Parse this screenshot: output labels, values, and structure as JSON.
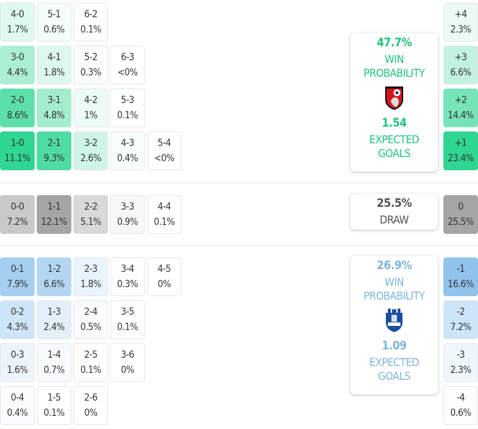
{
  "colors": {
    "home": "#2fd692",
    "away": "#8cc2ec",
    "draw": "#a5a5a5",
    "home_text": "#22c47e",
    "away_text": "#7fb5dc",
    "draw_text": "#555555"
  },
  "home": {
    "rows": [
      [
        [
          "4-0",
          "1.7%"
        ],
        [
          "5-1",
          "0.6%"
        ],
        [
          "6-2",
          "0.1%"
        ]
      ],
      [
        [
          "3-0",
          "4.4%"
        ],
        [
          "4-1",
          "1.8%"
        ],
        [
          "5-2",
          "0.3%"
        ],
        [
          "6-3",
          "<0%"
        ]
      ],
      [
        [
          "2-0",
          "8.6%"
        ],
        [
          "3-1",
          "4.8%"
        ],
        [
          "4-2",
          "1%"
        ],
        [
          "5-3",
          "0.1%"
        ]
      ],
      [
        [
          "1-0",
          "11.1%"
        ],
        [
          "2-1",
          "9.3%"
        ],
        [
          "3-2",
          "2.6%"
        ],
        [
          "4-3",
          "0.4%"
        ],
        [
          "5-4",
          "<0%"
        ]
      ]
    ],
    "margins": [
      [
        "+4",
        "2.3%"
      ],
      [
        "+3",
        "6.6%"
      ],
      [
        "+2",
        "14.4%"
      ],
      [
        "+1",
        "23.4%"
      ]
    ],
    "card": {
      "win_pct": "47.7%",
      "win_label1": "WIN",
      "win_label2": "PROBABILITY",
      "xg": "1.54",
      "xg_label1": "EXPECTED",
      "xg_label2": "GOALS",
      "crest": "bournemouth-crest"
    }
  },
  "draw": {
    "row": [
      [
        "0-0",
        "7.2%"
      ],
      [
        "1-1",
        "12.1%"
      ],
      [
        "2-2",
        "5.1%"
      ],
      [
        "3-3",
        "0.9%"
      ],
      [
        "4-4",
        "0.1%"
      ]
    ],
    "margin": [
      "0",
      "25.5%"
    ],
    "card": {
      "pct": "25.5%",
      "label": "DRAW"
    }
  },
  "away": {
    "rows": [
      [
        [
          "0-1",
          "7.9%"
        ],
        [
          "1-2",
          "6.6%"
        ],
        [
          "2-3",
          "1.8%"
        ],
        [
          "3-4",
          "0.3%"
        ],
        [
          "4-5",
          "0%"
        ]
      ],
      [
        [
          "0-2",
          "4.3%"
        ],
        [
          "1-3",
          "2.4%"
        ],
        [
          "2-4",
          "0.5%"
        ],
        [
          "3-5",
          "0.1%"
        ]
      ],
      [
        [
          "0-3",
          "1.6%"
        ],
        [
          "1-4",
          "0.7%"
        ],
        [
          "2-5",
          "0.1%"
        ],
        [
          "3-6",
          "0%"
        ]
      ],
      [
        [
          "0-4",
          "0.4%"
        ],
        [
          "1-5",
          "0.1%"
        ],
        [
          "2-6",
          "0%"
        ]
      ]
    ],
    "margins": [
      [
        "-1",
        "16.6%"
      ],
      [
        "-2",
        "7.2%"
      ],
      [
        "-3",
        "2.3%"
      ],
      [
        "-4",
        "0.6%"
      ]
    ],
    "card": {
      "win_pct": "26.9%",
      "win_label1": "WIN",
      "win_label2": "PROBABILITY",
      "xg": "1.09",
      "xg_label1": "EXPECTED",
      "xg_label2": "GOALS",
      "crest": "everton-crest"
    }
  }
}
